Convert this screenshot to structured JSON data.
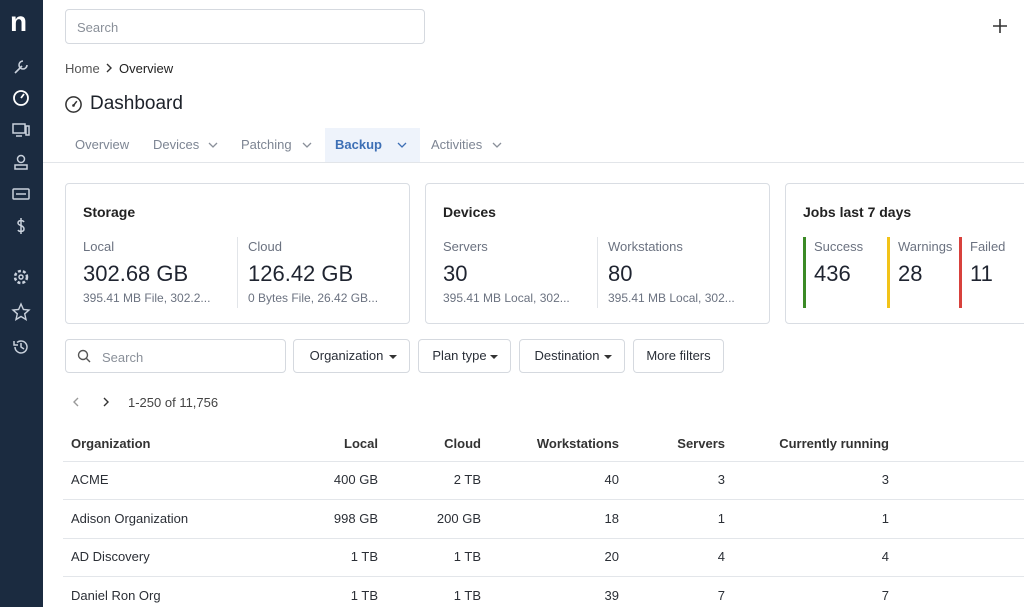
{
  "logo": "n",
  "top_search": "Search",
  "breadcrumb": [
    "Home",
    "Overview"
  ],
  "page_title": "Dashboard",
  "tabs": [
    {
      "label": "Overview",
      "dropdown": false,
      "active": false
    },
    {
      "label": "Devices",
      "dropdown": true,
      "active": false
    },
    {
      "label": "Patching",
      "dropdown": true,
      "active": false
    },
    {
      "label": "Backup",
      "dropdown": true,
      "active": true
    },
    {
      "label": "Activities",
      "dropdown": true,
      "active": false
    }
  ],
  "cards": [
    {
      "title": "Storage",
      "stats": [
        {
          "label": "Local",
          "value": "302.68 GB",
          "detail": "395.41 MB File, 302.2..."
        },
        {
          "label": "Cloud",
          "value": "126.42 GB",
          "detail": "0 Bytes File, 26.42 GB..."
        }
      ]
    },
    {
      "title": "Devices",
      "stats": [
        {
          "label": "Servers",
          "value": "30",
          "detail": "395.41 MB Local, 302..."
        },
        {
          "label": "Workstations",
          "value": "80",
          "detail": "395.41 MB Local, 302..."
        }
      ]
    },
    {
      "title": "Jobs last 7 days",
      "stats": [
        {
          "label": "Success",
          "value": "436",
          "color": "#3b8a26"
        },
        {
          "label": "Warnings",
          "value": "28",
          "color": "#f2c318"
        },
        {
          "label": "Failed",
          "value": "11",
          "color": "#d8413c"
        }
      ]
    }
  ],
  "filters": {
    "search": "Search",
    "buttons": [
      {
        "label": "Organization",
        "dropdown": true
      },
      {
        "label": "Plan type",
        "dropdown": true
      },
      {
        "label": "Destination",
        "dropdown": true
      },
      {
        "label": "More filters",
        "dropdown": false
      }
    ]
  },
  "pagination": "1-250 of 11,756",
  "table": {
    "columns": [
      "Organization",
      "Local",
      "Cloud",
      "Workstations",
      "Servers",
      "Currently running"
    ],
    "rows": [
      [
        "ACME",
        "400 GB",
        "2 TB",
        "40",
        "3",
        "3"
      ],
      [
        "Adison Organization",
        "998 GB",
        "200 GB",
        "18",
        "1",
        "1"
      ],
      [
        "AD Discovery",
        "1 TB",
        "1 TB",
        "20",
        "4",
        "4"
      ],
      [
        "Daniel Ron Org",
        "1 TB",
        "1 TB",
        "39",
        "7",
        "7"
      ]
    ]
  }
}
